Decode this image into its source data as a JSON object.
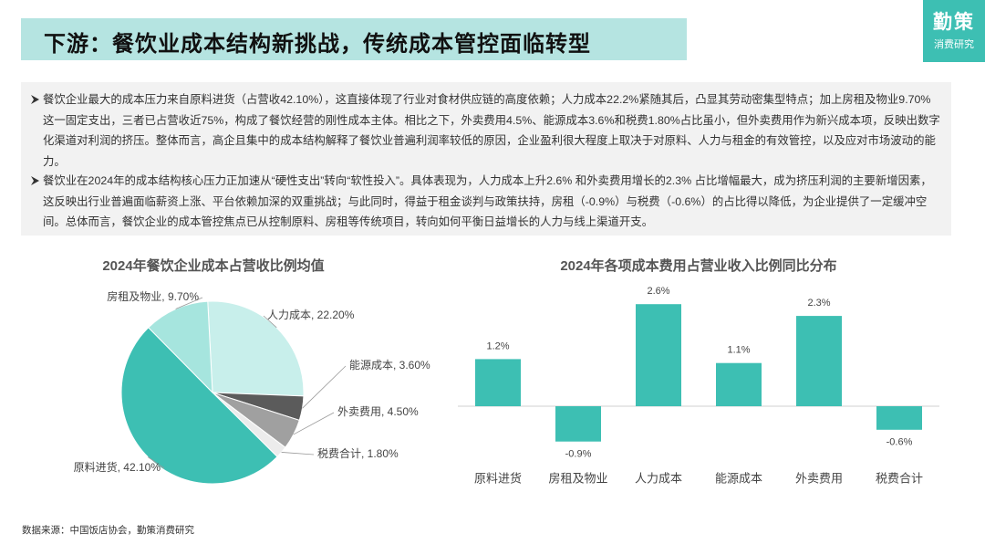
{
  "header": {
    "title": "下游：餐饮业成本结构新挑战，传统成本管控面临转型"
  },
  "logo": {
    "main": "勤策",
    "sub": "消费研究"
  },
  "bullets": [
    "餐饮企业最大的成本压力来自原料进货（占营收42.10%），这直接体现了行业对食材供应链的高度依赖；人力成本22.2%紧随其后，凸显其劳动密集型特点；加上房租及物业9.70%这一固定支出，三者已占营收近75%，构成了餐饮经营的刚性成本主体。相比之下，外卖费用4.5%、能源成本3.6%和税费1.80%占比虽小，但外卖费用作为新兴成本项，反映出数字化渠道对利润的挤压。整体而言，高企且集中的成本结构解释了餐饮业普遍利润率较低的原因，企业盈利很大程度上取决于对原料、人力与租金的有效管控，以及应对市场波动的能力。",
    "餐饮业在2024年的成本结构核心压力正加速从“硬性支出”转向“软性投入”。具体表现为，人力成本上升2.6% 和外卖费用增长的2.3% 占比增幅最大，成为挤压利润的主要新增因素，这反映出行业普遍面临薪资上涨、平台依赖加深的双重挑战；与此同时，得益于租金谈判与政策扶持，房租（-0.9%）与税费（-0.6%）的占比得以降低，为企业提供了一定缓冲空间。总体而言，餐饮企业的成本管控焦点已从控制原料、房租等传统项目，转向如何平衡日益增长的人力与线上渠道开支。"
  ],
  "source": "数据来源：中国饭店协会，勤策消费研究",
  "chart_data": [
    {
      "type": "pie",
      "title": "2024年餐饮企业成本占营收比例均值",
      "values": [
        22.2,
        3.6,
        4.5,
        1.8,
        42.1,
        9.7
      ],
      "value_labels": [
        "人力成本, 22.20%",
        "能源成本, 3.60%",
        "外卖费用, 4.50%",
        "税费合计, 1.80%",
        "原料进货, 42.10%",
        "房租及物业, 9.70%"
      ],
      "colors": [
        "#c8efeb",
        "#5b5b5b",
        "#a0a0a0",
        "#ececec",
        "#3dbfb3",
        "#a6e5de"
      ]
    },
    {
      "type": "bar",
      "title": "2024年各项成本费用占营业收入比例同比分布",
      "categories": [
        "原料进货",
        "房租及物业",
        "人力成本",
        "能源成本",
        "外卖费用",
        "税费合计"
      ],
      "values": [
        1.2,
        -0.9,
        2.6,
        1.1,
        2.3,
        -0.6
      ],
      "value_labels": [
        "1.2%",
        "-0.9%",
        "2.6%",
        "1.1%",
        "2.3%",
        "-0.6%"
      ],
      "color": "#3dbfb3"
    }
  ]
}
